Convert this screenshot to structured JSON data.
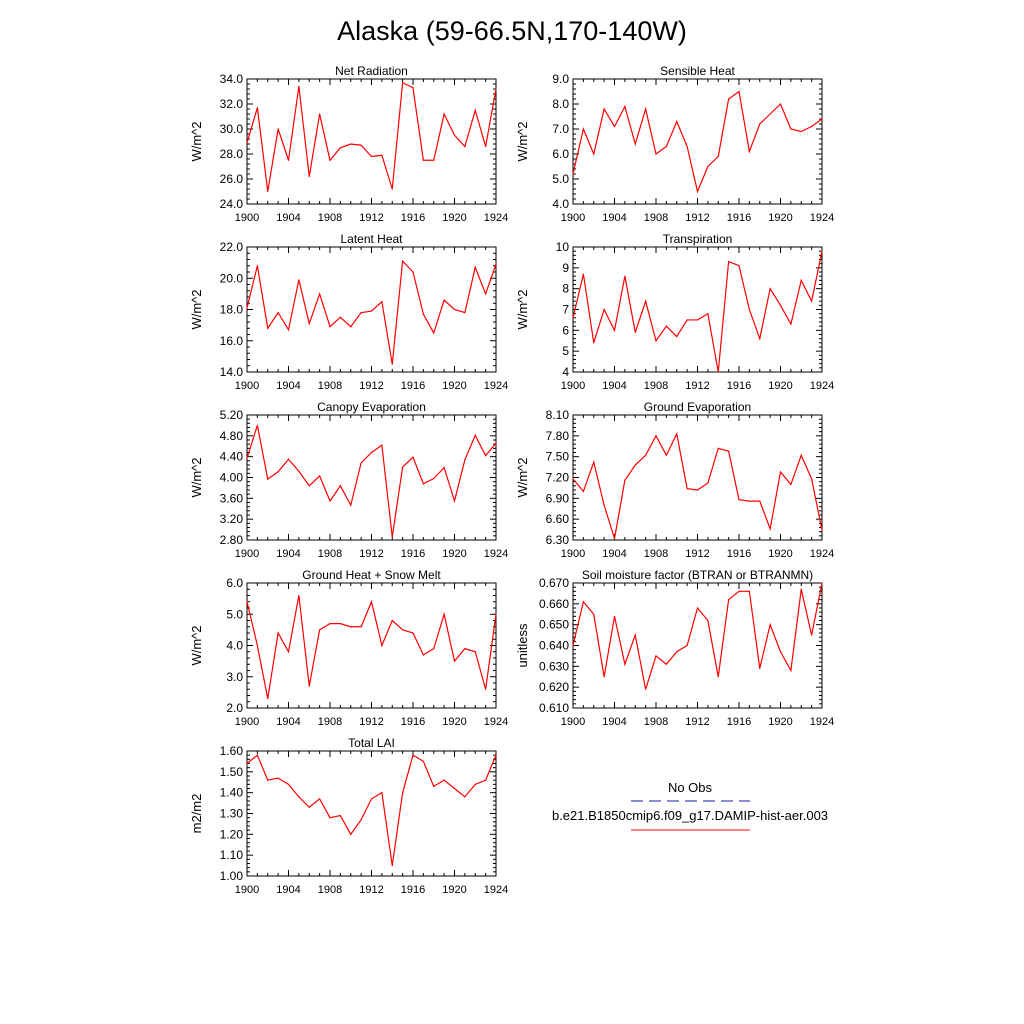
{
  "title": "Alaska (59-66.5N,170-140W)",
  "legend": {
    "entries": [
      {
        "label": "No Obs",
        "color": "#1a1aa6",
        "dash": true
      },
      {
        "label": "b.e21.B1850cmip6.f09_g17.DAMIP-hist-aer.003",
        "color": "#ff0000",
        "dash": false
      }
    ]
  },
  "colors": {
    "model_line": "#ff0000"
  },
  "chart_data": [
    {
      "type": "line",
      "title": "Net Radiation",
      "ylabel": "W/m^2",
      "xlabel": "",
      "xlim": [
        1900,
        1924
      ],
      "ylim": [
        24,
        34
      ],
      "xticks": [
        "1900",
        "1904",
        "1908",
        "1912",
        "1916",
        "1920",
        "1924"
      ],
      "yticks": [
        "24.0",
        "26.0",
        "28.0",
        "30.0",
        "32.0",
        "34.0"
      ],
      "x": [
        1900,
        1901,
        1902,
        1903,
        1904,
        1905,
        1906,
        1907,
        1908,
        1909,
        1910,
        1911,
        1912,
        1913,
        1914,
        1915,
        1916,
        1917,
        1918,
        1919,
        1920,
        1921,
        1922,
        1923,
        1924
      ],
      "series": [
        {
          "values": [
            28.9,
            31.7,
            25.0,
            30.0,
            27.5,
            33.4,
            26.2,
            31.2,
            27.5,
            28.5,
            28.8,
            28.7,
            27.8,
            27.9,
            25.2,
            33.7,
            33.3,
            27.5,
            27.5,
            31.2,
            29.5,
            28.6,
            31.5,
            28.6,
            33.2
          ]
        }
      ]
    },
    {
      "type": "line",
      "title": "Sensible Heat",
      "ylabel": "W/m^2",
      "xlabel": "",
      "xlim": [
        1900,
        1924
      ],
      "ylim": [
        4,
        9
      ],
      "xticks": [
        "1900",
        "1904",
        "1908",
        "1912",
        "1916",
        "1920",
        "1924"
      ],
      "yticks": [
        "4.0",
        "5.0",
        "6.0",
        "7.0",
        "8.0",
        "9.0"
      ],
      "x": [
        1900,
        1901,
        1902,
        1903,
        1904,
        1905,
        1906,
        1907,
        1908,
        1909,
        1910,
        1911,
        1912,
        1913,
        1914,
        1915,
        1916,
        1917,
        1918,
        1919,
        1920,
        1921,
        1922,
        1923,
        1924
      ],
      "series": [
        {
          "values": [
            5.2,
            7.0,
            6.0,
            7.8,
            7.1,
            7.9,
            6.4,
            7.8,
            6.0,
            6.3,
            7.3,
            6.3,
            4.5,
            5.5,
            5.9,
            8.2,
            8.5,
            6.1,
            7.2,
            7.6,
            8.0,
            7.0,
            6.9,
            7.1,
            7.4
          ]
        }
      ]
    },
    {
      "type": "line",
      "title": "Latent Heat",
      "ylabel": "W/m^2",
      "xlabel": "",
      "xlim": [
        1900,
        1924
      ],
      "ylim": [
        14,
        22
      ],
      "xticks": [
        "1900",
        "1904",
        "1908",
        "1912",
        "1916",
        "1920",
        "1924"
      ],
      "yticks": [
        "14.0",
        "16.0",
        "18.0",
        "20.0",
        "22.0"
      ],
      "x": [
        1900,
        1901,
        1902,
        1903,
        1904,
        1905,
        1906,
        1907,
        1908,
        1909,
        1910,
        1911,
        1912,
        1913,
        1914,
        1915,
        1916,
        1917,
        1918,
        1919,
        1920,
        1921,
        1922,
        1923,
        1924
      ],
      "series": [
        {
          "values": [
            18.1,
            20.8,
            16.8,
            17.8,
            16.7,
            19.9,
            17.1,
            19.0,
            16.9,
            17.5,
            16.9,
            17.8,
            17.9,
            18.5,
            14.5,
            21.1,
            20.4,
            17.7,
            16.5,
            18.6,
            18.0,
            17.8,
            20.7,
            19.0,
            20.9
          ]
        }
      ]
    },
    {
      "type": "line",
      "title": "Transpiration",
      "ylabel": "W/m^2",
      "xlabel": "",
      "xlim": [
        1900,
        1924
      ],
      "ylim": [
        4,
        10
      ],
      "xticks": [
        "1900",
        "1904",
        "1908",
        "1912",
        "1916",
        "1920",
        "1924"
      ],
      "yticks": [
        "4",
        "5",
        "6",
        "7",
        "8",
        "9",
        "10"
      ],
      "x": [
        1900,
        1901,
        1902,
        1903,
        1904,
        1905,
        1906,
        1907,
        1908,
        1909,
        1910,
        1911,
        1912,
        1913,
        1914,
        1915,
        1916,
        1917,
        1918,
        1919,
        1920,
        1921,
        1922,
        1923,
        1924
      ],
      "series": [
        {
          "values": [
            6.6,
            8.7,
            5.4,
            7.0,
            6.0,
            8.6,
            5.9,
            7.4,
            5.5,
            6.2,
            5.7,
            6.5,
            6.5,
            6.8,
            4.0,
            9.3,
            9.1,
            7.0,
            5.6,
            8.0,
            7.2,
            6.3,
            8.4,
            7.4,
            9.8
          ]
        }
      ]
    },
    {
      "type": "line",
      "title": "Canopy Evaporation",
      "ylabel": "W/m^2",
      "xlabel": "",
      "xlim": [
        1900,
        1924
      ],
      "ylim": [
        2.8,
        5.2
      ],
      "xticks": [
        "1900",
        "1904",
        "1908",
        "1912",
        "1916",
        "1920",
        "1924"
      ],
      "yticks": [
        "2.80",
        "3.20",
        "3.60",
        "4.00",
        "4.40",
        "4.80",
        "5.20"
      ],
      "x": [
        1900,
        1901,
        1902,
        1903,
        1904,
        1905,
        1906,
        1907,
        1908,
        1909,
        1910,
        1911,
        1912,
        1913,
        1914,
        1915,
        1916,
        1917,
        1918,
        1919,
        1920,
        1921,
        1922,
        1923,
        1924
      ],
      "series": [
        {
          "values": [
            4.37,
            5.0,
            3.97,
            4.11,
            4.35,
            4.12,
            3.84,
            4.03,
            3.55,
            3.84,
            3.47,
            4.28,
            4.48,
            4.62,
            2.86,
            4.2,
            4.39,
            3.88,
            3.98,
            4.19,
            3.55,
            4.34,
            4.81,
            4.42,
            4.66
          ]
        }
      ]
    },
    {
      "type": "line",
      "title": "Ground Evaporation",
      "ylabel": "W/m^2",
      "xlabel": "",
      "xlim": [
        1900,
        1924
      ],
      "ylim": [
        6.3,
        8.1
      ],
      "xticks": [
        "1900",
        "1904",
        "1908",
        "1912",
        "1916",
        "1920",
        "1924"
      ],
      "yticks": [
        "6.30",
        "6.60",
        "6.90",
        "7.20",
        "7.50",
        "7.80",
        "8.10"
      ],
      "x": [
        1900,
        1901,
        1902,
        1903,
        1904,
        1905,
        1906,
        1907,
        1908,
        1909,
        1910,
        1911,
        1912,
        1913,
        1914,
        1915,
        1916,
        1917,
        1918,
        1919,
        1920,
        1921,
        1922,
        1923,
        1924
      ],
      "series": [
        {
          "values": [
            7.18,
            7.0,
            7.42,
            6.8,
            6.32,
            7.16,
            7.38,
            7.52,
            7.8,
            7.52,
            7.83,
            7.04,
            7.02,
            7.12,
            7.62,
            7.58,
            6.88,
            6.86,
            6.86,
            6.46,
            7.28,
            7.1,
            7.52,
            7.18,
            6.44
          ]
        }
      ]
    },
    {
      "type": "line",
      "title": "Ground Heat + Snow Melt",
      "ylabel": "W/m^2",
      "xlabel": "",
      "xlim": [
        1900,
        1924
      ],
      "ylim": [
        2,
        6
      ],
      "xticks": [
        "1900",
        "1904",
        "1908",
        "1912",
        "1916",
        "1920",
        "1924"
      ],
      "yticks": [
        "2.0",
        "3.0",
        "4.0",
        "5.0",
        "6.0"
      ],
      "x": [
        1900,
        1901,
        1902,
        1903,
        1904,
        1905,
        1906,
        1907,
        1908,
        1909,
        1910,
        1911,
        1912,
        1913,
        1914,
        1915,
        1916,
        1917,
        1918,
        1919,
        1920,
        1921,
        1922,
        1923,
        1924
      ],
      "series": [
        {
          "values": [
            5.4,
            4.0,
            2.3,
            4.4,
            3.8,
            5.6,
            2.7,
            4.5,
            4.7,
            4.7,
            4.6,
            4.6,
            5.4,
            4.0,
            4.8,
            4.5,
            4.4,
            3.7,
            3.9,
            5.0,
            3.5,
            3.9,
            3.8,
            2.6,
            5.0
          ]
        }
      ]
    },
    {
      "type": "line",
      "title": "Soil moisture factor (BTRAN or BTRANMN)",
      "ylabel": "unitless",
      "xlabel": "",
      "xlim": [
        1900,
        1924
      ],
      "ylim": [
        0.61,
        0.67
      ],
      "xticks": [
        "1900",
        "1904",
        "1908",
        "1912",
        "1916",
        "1920",
        "1924"
      ],
      "yticks": [
        "0.610",
        "0.620",
        "0.630",
        "0.640",
        "0.650",
        "0.660",
        "0.670"
      ],
      "x": [
        1900,
        1901,
        1902,
        1903,
        1904,
        1905,
        1906,
        1907,
        1908,
        1909,
        1910,
        1911,
        1912,
        1913,
        1914,
        1915,
        1916,
        1917,
        1918,
        1919,
        1920,
        1921,
        1922,
        1923,
        1924
      ],
      "series": [
        {
          "values": [
            0.64,
            0.661,
            0.655,
            0.625,
            0.654,
            0.631,
            0.645,
            0.619,
            0.635,
            0.631,
            0.637,
            0.64,
            0.658,
            0.652,
            0.625,
            0.662,
            0.666,
            0.666,
            0.629,
            0.65,
            0.637,
            0.628,
            0.667,
            0.645,
            0.67
          ]
        }
      ]
    },
    {
      "type": "line",
      "title": "Total LAI",
      "ylabel": "m2/m2",
      "xlabel": "",
      "xlim": [
        1900,
        1924
      ],
      "ylim": [
        1.0,
        1.6
      ],
      "xticks": [
        "1900",
        "1904",
        "1908",
        "1912",
        "1916",
        "1920",
        "1924"
      ],
      "yticks": [
        "1.00",
        "1.10",
        "1.20",
        "1.30",
        "1.40",
        "1.50",
        "1.60"
      ],
      "x": [
        1900,
        1901,
        1902,
        1903,
        1904,
        1905,
        1906,
        1907,
        1908,
        1909,
        1910,
        1911,
        1912,
        1913,
        1914,
        1915,
        1916,
        1917,
        1918,
        1919,
        1920,
        1921,
        1922,
        1923,
        1924
      ],
      "series": [
        {
          "values": [
            1.54,
            1.58,
            1.46,
            1.47,
            1.44,
            1.38,
            1.33,
            1.37,
            1.28,
            1.29,
            1.2,
            1.27,
            1.37,
            1.4,
            1.05,
            1.4,
            1.58,
            1.55,
            1.43,
            1.46,
            1.42,
            1.38,
            1.44,
            1.46,
            1.58
          ]
        }
      ]
    }
  ]
}
